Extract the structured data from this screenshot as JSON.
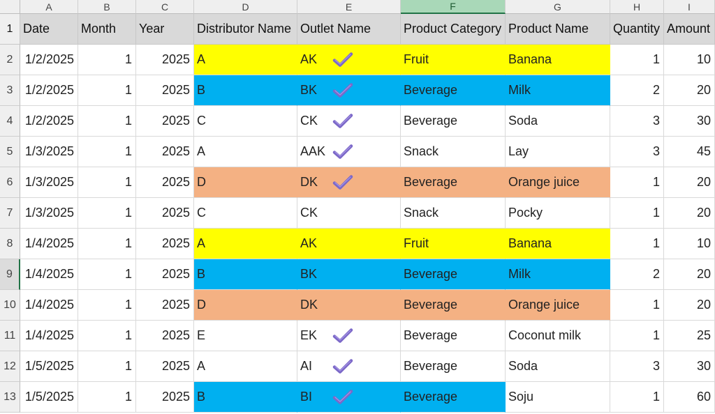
{
  "columns": [
    "A",
    "B",
    "C",
    "D",
    "E",
    "F",
    "G",
    "H",
    "I"
  ],
  "selected_column": "F",
  "selected_row": "9",
  "headers": {
    "date": "Date",
    "month": "Month",
    "year": "Year",
    "distributor": "Distributor Name",
    "outlet": "Outlet Name",
    "category": "Product Category",
    "product": "Product Name",
    "quantity": "Quantity",
    "amount": "Amount"
  },
  "checkmark_icon": "check-mark-icon",
  "colors": {
    "yellow": "#ffff00",
    "blue": "#00b0f0",
    "orange": "#f4b183",
    "check": "#7b68c8"
  },
  "rows": [
    {
      "num": "1",
      "header": true
    },
    {
      "num": "2",
      "date": "1/2/2025",
      "month": "1",
      "year": "2025",
      "distributor": "A",
      "outlet": "AK",
      "check": true,
      "category": "Fruit",
      "product": "Banana",
      "quantity": "1",
      "amount": "10",
      "fill": "yellow",
      "fill_to": "G"
    },
    {
      "num": "3",
      "date": "1/2/2025",
      "month": "1",
      "year": "2025",
      "distributor": "B",
      "outlet": "BK",
      "check": true,
      "category": "Beverage",
      "product": "Milk",
      "quantity": "2",
      "amount": "20",
      "fill": "blue",
      "fill_to": "G"
    },
    {
      "num": "4",
      "date": "1/2/2025",
      "month": "1",
      "year": "2025",
      "distributor": "C",
      "outlet": "CK",
      "check": true,
      "category": "Beverage",
      "product": "Soda",
      "quantity": "3",
      "amount": "30",
      "fill": "",
      "fill_to": ""
    },
    {
      "num": "5",
      "date": "1/3/2025",
      "month": "1",
      "year": "2025",
      "distributor": "A",
      "outlet": "AAK",
      "check": true,
      "category": "Snack",
      "product": "Lay",
      "quantity": "3",
      "amount": "45",
      "fill": "",
      "fill_to": ""
    },
    {
      "num": "6",
      "date": "1/3/2025",
      "month": "1",
      "year": "2025",
      "distributor": "D",
      "outlet": "DK",
      "check": true,
      "category": "Beverage",
      "product": "Orange juice",
      "quantity": "1",
      "amount": "20",
      "fill": "orange",
      "fill_to": "G"
    },
    {
      "num": "7",
      "date": "1/3/2025",
      "month": "1",
      "year": "2025",
      "distributor": "C",
      "outlet": "CK",
      "check": false,
      "category": "Snack",
      "product": "Pocky",
      "quantity": "1",
      "amount": "20",
      "fill": "",
      "fill_to": ""
    },
    {
      "num": "8",
      "date": "1/4/2025",
      "month": "1",
      "year": "2025",
      "distributor": "A",
      "outlet": "AK",
      "check": false,
      "category": "Fruit",
      "product": "Banana",
      "quantity": "1",
      "amount": "10",
      "fill": "yellow",
      "fill_to": "G"
    },
    {
      "num": "9",
      "date": "1/4/2025",
      "month": "1",
      "year": "2025",
      "distributor": "B",
      "outlet": "BK",
      "check": false,
      "category": "Beverage",
      "product": "Milk",
      "quantity": "2",
      "amount": "20",
      "fill": "blue",
      "fill_to": "G"
    },
    {
      "num": "10",
      "date": "1/4/2025",
      "month": "1",
      "year": "2025",
      "distributor": "D",
      "outlet": "DK",
      "check": false,
      "category": "Beverage",
      "product": "Orange juice",
      "quantity": "1",
      "amount": "20",
      "fill": "orange",
      "fill_to": "G"
    },
    {
      "num": "11",
      "date": "1/4/2025",
      "month": "1",
      "year": "2025",
      "distributor": "E",
      "outlet": "EK",
      "check": true,
      "category": "Beverage",
      "product": "Coconut milk",
      "quantity": "1",
      "amount": "25",
      "fill": "",
      "fill_to": ""
    },
    {
      "num": "12",
      "date": "1/5/2025",
      "month": "1",
      "year": "2025",
      "distributor": "A",
      "outlet": "AI",
      "check": true,
      "category": "Beverage",
      "product": "Soda",
      "quantity": "3",
      "amount": "30",
      "fill": "",
      "fill_to": ""
    },
    {
      "num": "13",
      "date": "1/5/2025",
      "month": "1",
      "year": "2025",
      "distributor": "B",
      "outlet": "BI",
      "check": true,
      "category": "Beverage",
      "product": "Soju",
      "quantity": "1",
      "amount": "60",
      "fill": "blue",
      "fill_to": "F"
    }
  ]
}
